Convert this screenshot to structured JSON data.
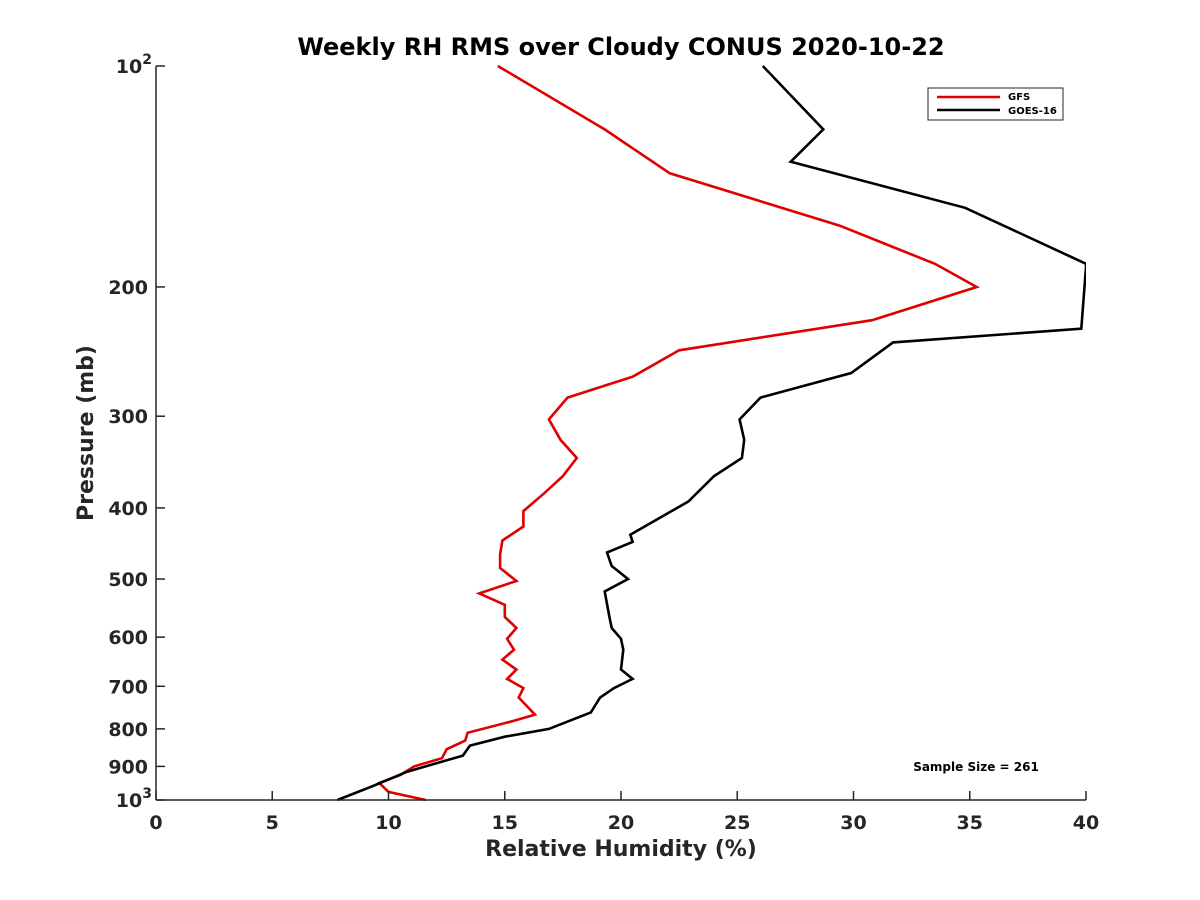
{
  "chart_data": {
    "type": "line",
    "title": "Weekly RH RMS over Cloudy CONUS 2020-10-22",
    "xlabel": "Relative Humidity (%)",
    "ylabel": "Pressure (mb)",
    "xlim": [
      0,
      40
    ],
    "ylim": [
      100,
      1000
    ],
    "y_scale": "log",
    "y_reversed": true,
    "grid": false,
    "legend_position": "top-right",
    "x_ticks": [
      {
        "value": 0,
        "label": "0"
      },
      {
        "value": 5,
        "label": "5"
      },
      {
        "value": 10,
        "label": "10"
      },
      {
        "value": 15,
        "label": "15"
      },
      {
        "value": 20,
        "label": "20"
      },
      {
        "value": 25,
        "label": "25"
      },
      {
        "value": 30,
        "label": "30"
      },
      {
        "value": 35,
        "label": "35"
      },
      {
        "value": 40,
        "label": "40"
      }
    ],
    "y_ticks": [
      {
        "value": 100,
        "base": "10",
        "exp": "2"
      },
      {
        "value": 200,
        "label": "200"
      },
      {
        "value": 300,
        "label": "300"
      },
      {
        "value": 400,
        "label": "400"
      },
      {
        "value": 500,
        "label": "500"
      },
      {
        "value": 600,
        "label": "600"
      },
      {
        "value": 700,
        "label": "700"
      },
      {
        "value": 800,
        "label": "800"
      },
      {
        "value": 900,
        "label": "900"
      },
      {
        "value": 1000,
        "base": "10",
        "exp": "3"
      }
    ],
    "series": [
      {
        "name": "GFS",
        "color": "#e00000",
        "x": [
          14.7,
          19.3,
          22.1,
          29.4,
          33.5,
          35.3,
          30.8,
          22.5,
          20.5,
          17.7,
          16.9,
          17.4,
          18.1,
          17.5,
          16.7,
          15.8,
          15.8,
          14.9,
          14.8,
          14.8,
          15.5,
          13.9,
          15.0,
          15.0,
          15.5,
          15.1,
          15.4,
          14.9,
          15.5,
          15.1,
          15.8,
          15.6,
          16.3,
          15.4,
          13.4,
          13.3,
          12.5,
          12.3,
          11.1,
          10.5,
          9.6,
          10.0,
          11.6
        ],
        "y": [
          100,
          122,
          140,
          165,
          186,
          200,
          222,
          244,
          265,
          283,
          303,
          323,
          342,
          362,
          382,
          404,
          424,
          443,
          463,
          483,
          503,
          523,
          542,
          563,
          583,
          603,
          624,
          644,
          664,
          684,
          704,
          725,
          765,
          780,
          810,
          830,
          853,
          877,
          900,
          925,
          948,
          975,
          1000
        ]
      },
      {
        "name": "GOES-16",
        "color": "#000000",
        "x": [
          26.1,
          28.7,
          27.3,
          34.8,
          40.0,
          40.0,
          39.8,
          31.7,
          29.9,
          26.0,
          25.1,
          25.3,
          25.2,
          24.0,
          22.9,
          20.4,
          20.5,
          19.4,
          19.6,
          20.3,
          19.3,
          19.5,
          19.6,
          20.0,
          20.1,
          20.0,
          20.5,
          19.7,
          19.1,
          18.7,
          16.9,
          15.0,
          13.5,
          13.2,
          10.8,
          9.3,
          7.8
        ],
        "y": [
          100,
          122,
          135,
          156,
          186,
          188,
          228,
          238,
          262,
          283,
          303,
          323,
          342,
          362,
          392,
          435,
          445,
          460,
          480,
          500,
          520,
          563,
          583,
          603,
          624,
          664,
          684,
          704,
          725,
          760,
          800,
          820,
          843,
          870,
          915,
          958,
          1000
        ]
      }
    ],
    "annotation": "Sample Size = 261"
  }
}
